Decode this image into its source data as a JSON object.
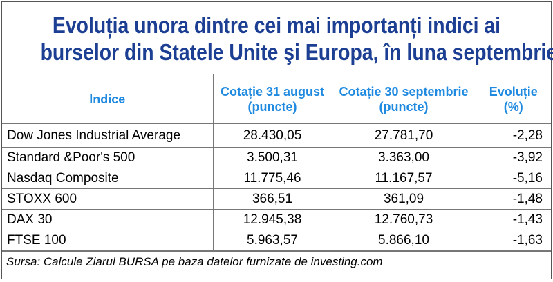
{
  "title": {
    "line1": "Evoluția unora dintre cei mai importanți indici ai",
    "line2": "burselor din Statele Unite şi Europa, în luna septembrie"
  },
  "table": {
    "headers": {
      "indice": "Indice",
      "aug_l1": "Cotație 31 august",
      "aug_l2": "(puncte)",
      "sep_l1": "Cotație 30 septembrie",
      "sep_l2": "(puncte)",
      "evo_l1": "Evoluție",
      "evo_l2": "(%)"
    },
    "rows": [
      {
        "name": "Dow Jones Industrial Average",
        "aug": "28.430,05",
        "sep": "27.781,70",
        "evo": "-2,28"
      },
      {
        "name": "Standard &Poor's 500",
        "aug": "3.500,31",
        "sep": "3.363,00",
        "evo": "-3,92"
      },
      {
        "name": "Nasdaq Composite",
        "aug": "11.775,46",
        "sep": "11.167,57",
        "evo": "-5,16"
      },
      {
        "name": "STOXX 600",
        "aug": "366,51",
        "sep": "361,09",
        "evo": "-1,48"
      },
      {
        "name": "DAX 30",
        "aug": "12.945,38",
        "sep": "12.760,73",
        "evo": "-1,43"
      },
      {
        "name": "FTSE 100",
        "aug": "5.963,57",
        "sep": "5.866,10",
        "evo": "-1,63"
      }
    ]
  },
  "source": "Sursa: Calcule Ziarul BURSA pe baza datelor furnizate de investing.com",
  "colors": {
    "title": "#1c3f93",
    "header": "#1f8ae0",
    "grid": "#777777"
  }
}
